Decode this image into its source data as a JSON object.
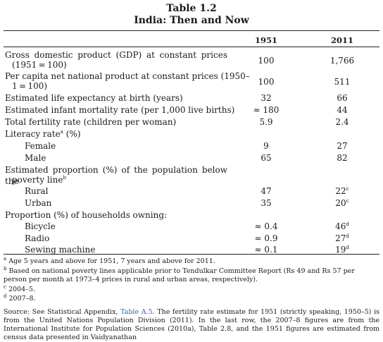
{
  "table": {
    "title_line1": "Table 1.2",
    "title_line2": "India: Then and Now",
    "col_1951": "1951",
    "col_2011": "2011"
  },
  "rows": [
    {
      "label_a": "Gross domestic product (GDP) at constant prices",
      "label_b": "(1951 = 100)",
      "v1951": "100",
      "v2011": "1,766"
    },
    {
      "label_a": "Per capita net national product at constant prices (1950–",
      "label_b": "1 = 100)",
      "v1951": "100",
      "v2011": "511"
    },
    {
      "label": "Estimated life expectancy at birth (years)",
      "v1951": "32",
      "v2011": "66"
    },
    {
      "label": "Estimated infant mortality rate (per 1,000 live births)",
      "v1951": "≈ 180",
      "v2011": "44"
    },
    {
      "label": "Total fertility rate (children per woman)",
      "v1951": "5.9",
      "v2011": "2.4"
    },
    {
      "label": "Literacy rate",
      "sup": "a",
      "label_tail": " (%)"
    },
    {
      "label": "Female",
      "v1951": "9",
      "v2011": "27"
    },
    {
      "label": "Male",
      "v1951": "65",
      "v2011": "82"
    },
    {
      "label_a": "Estimated proportion (%) of the population below the",
      "label_b": "poverty line",
      "sup": "b"
    },
    {
      "label": "Rural",
      "v1951": "47",
      "v2011": "22",
      "v2011_sup": "c"
    },
    {
      "label": "Urban",
      "v1951": "35",
      "v2011": "20",
      "v2011_sup": "c"
    },
    {
      "label": "Proportion (%) of households owning:"
    },
    {
      "label": "Bicycle",
      "v1951": "≈ 0.4",
      "v2011": "46",
      "v2011_sup": "d"
    },
    {
      "label": "Radio",
      "v1951": "≈ 0.9",
      "v2011": "27",
      "v2011_sup": "d"
    },
    {
      "label": "Sewing machine",
      "v1951": "≈ 0.1",
      "v2011": "19",
      "v2011_sup": "d"
    }
  ],
  "footnotes": {
    "a_mark": "a",
    "a": "Age 5 years and above for 1951, 7 years and above for 2011.",
    "b_mark": "b",
    "b": "Based on national poverty lines applicable prior to Tendulkar Committee Report (Rs 49 and Rs 57 per person per month at 1973–4 prices in rural and urban areas, respectively).",
    "c_mark": "c",
    "c": "2004–5.",
    "d_mark": "d",
    "d": "2007–8."
  },
  "source": {
    "prefix": "Source: See Statistical Appendix, ",
    "link": "Table A.5",
    "text": ". The fertility rate estimate for 1951 (strictly speaking, 1950–5) is from the United Nations Population Division (2011). In the last row, the 2007–8 figures are from the International Institute for Population Sciences (2010a), Table 2.8, and the 1951 figures are estimated from census data presented in Vaidyanathan"
  }
}
